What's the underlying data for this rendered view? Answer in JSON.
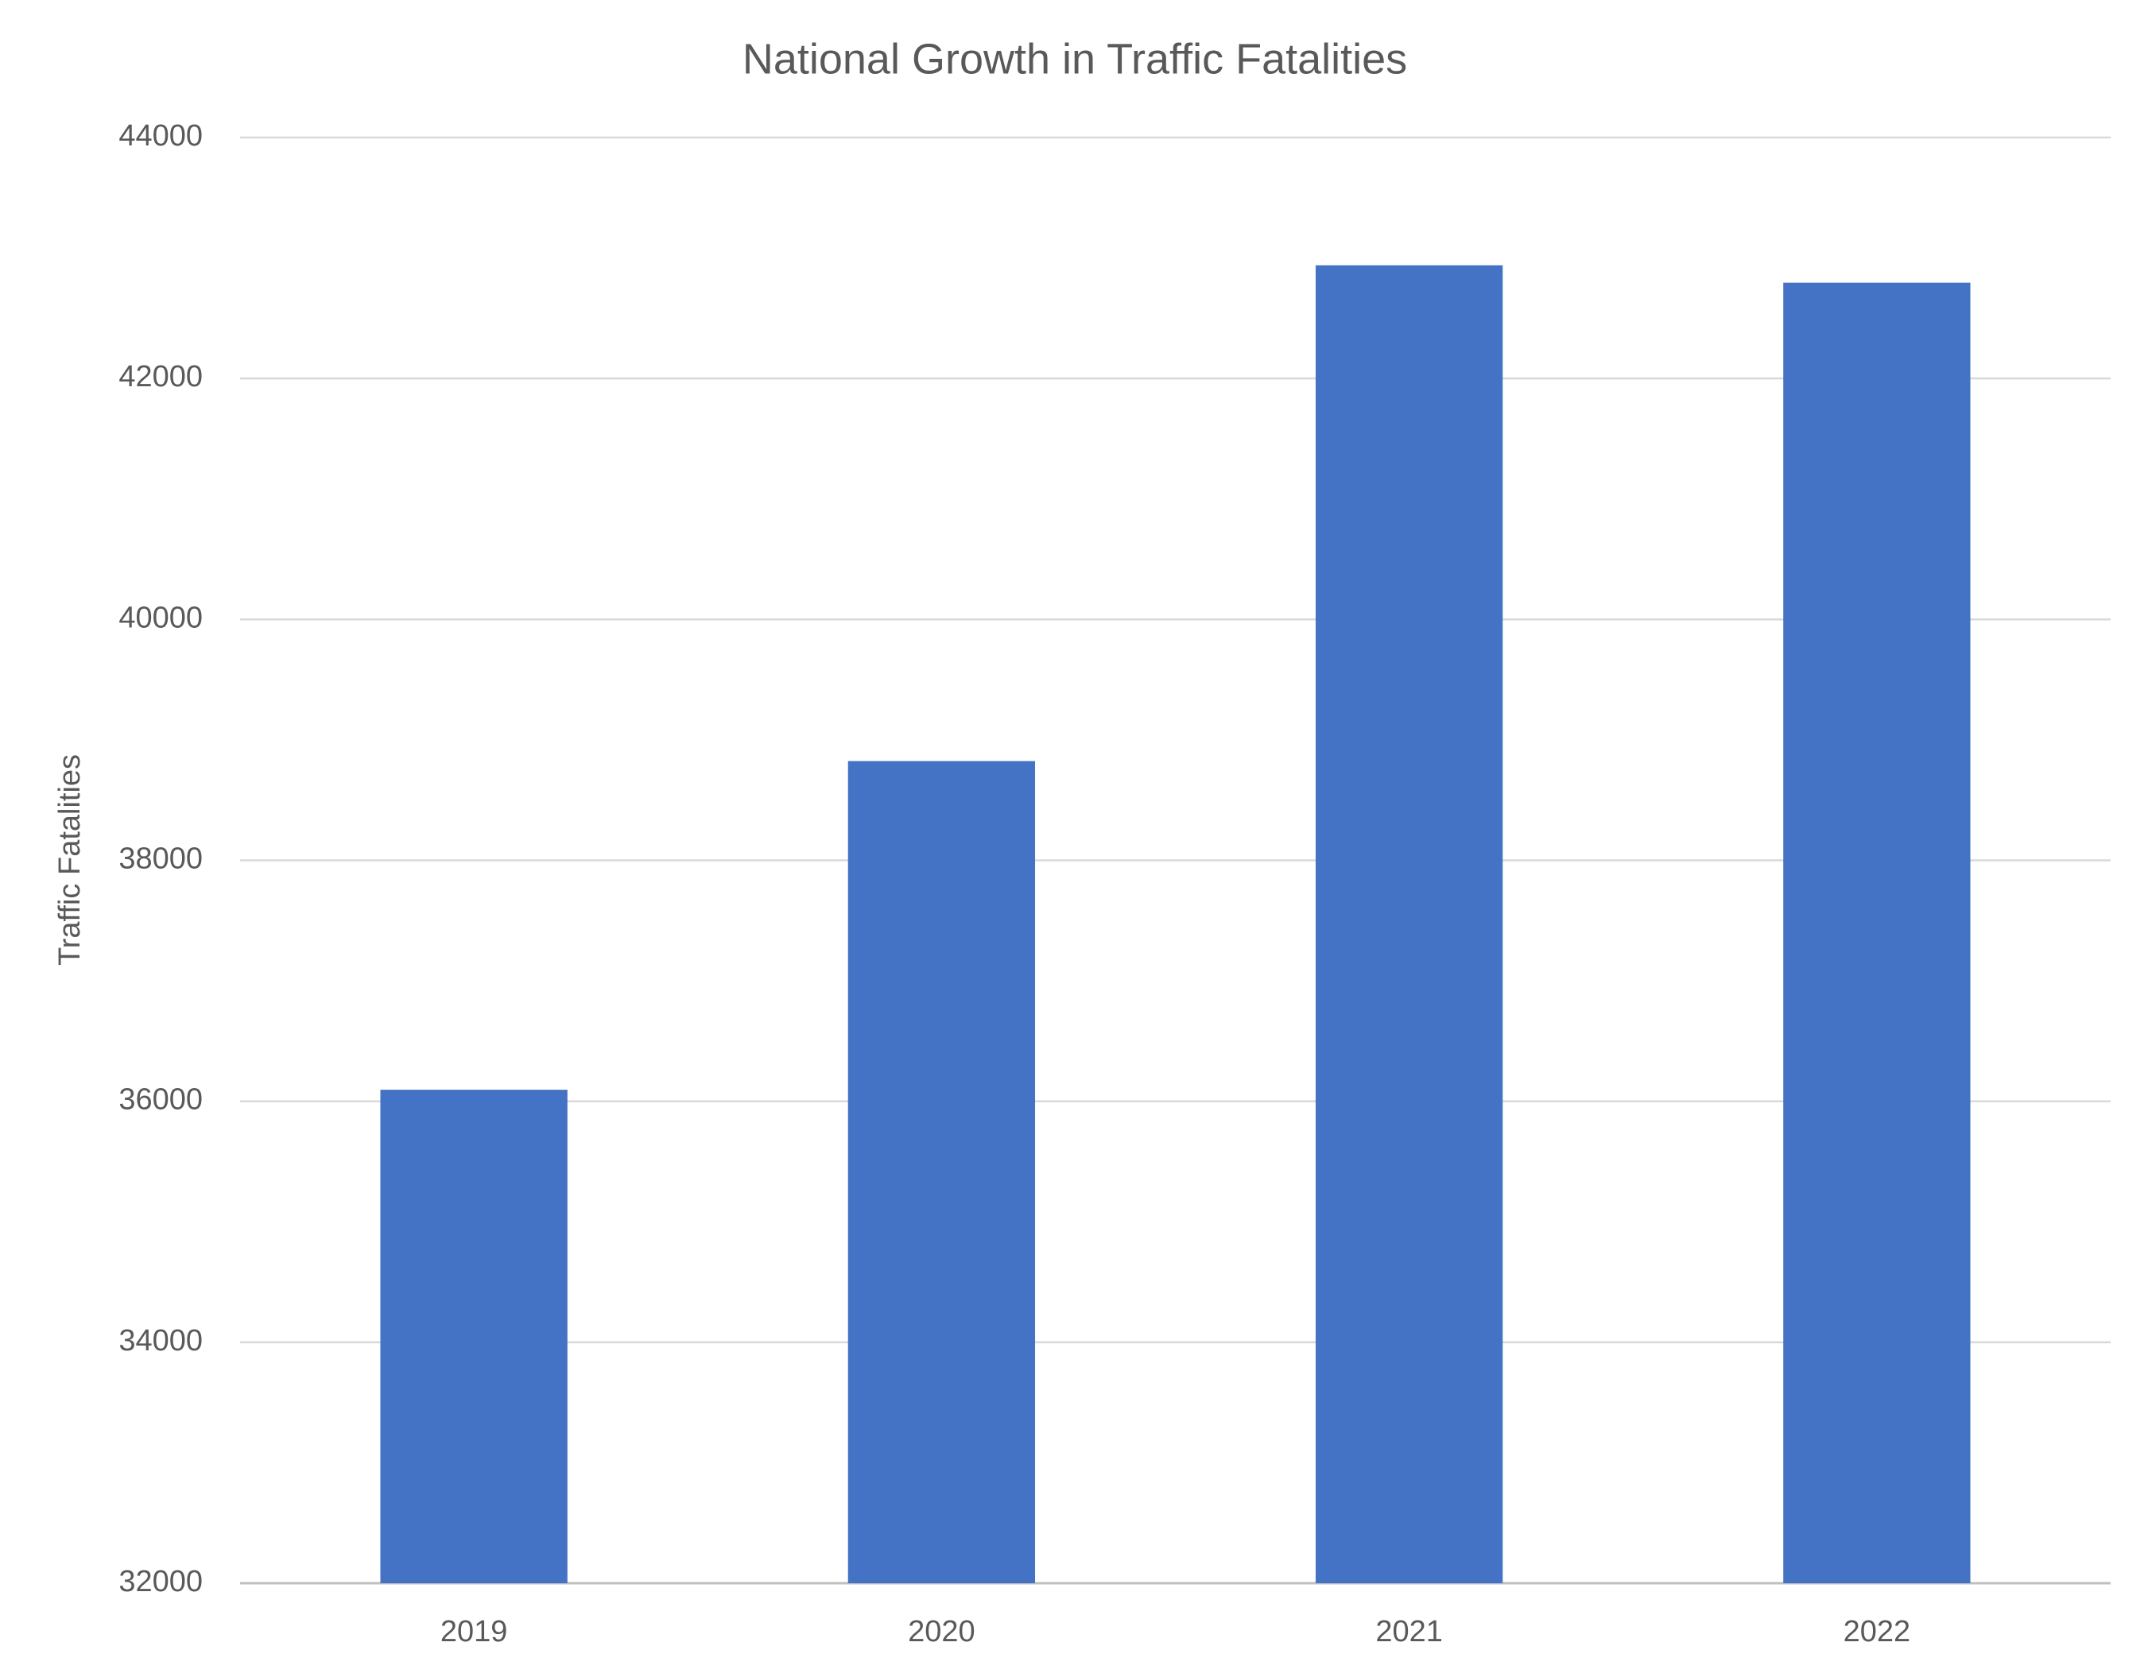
{
  "chart_data": {
    "type": "bar",
    "title": "National Growth in Traffic Fatalities",
    "y_label": "Traffic Fatalities",
    "categories": [
      "2019",
      "2020",
      "2021",
      "2022"
    ],
    "values": [
      36096,
      38824,
      42939,
      42795
    ],
    "color": "#4472c4",
    "ylim": [
      32000,
      44000
    ],
    "yticks": [
      32000,
      34000,
      36000,
      38000,
      40000,
      42000,
      44000
    ],
    "grid": true
  }
}
